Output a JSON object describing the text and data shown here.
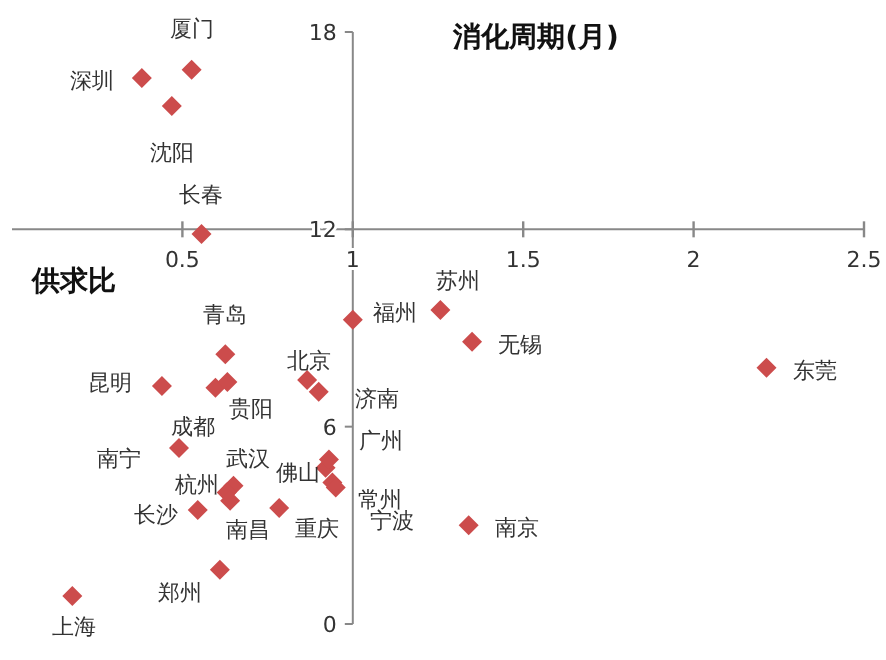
{
  "chart_data": {
    "type": "scatter",
    "xlabel": "供求比",
    "ylabel": "消化周期(月)",
    "xlim": [
      0,
      2.5
    ],
    "ylim": [
      0,
      18
    ],
    "xticks": [
      0.5,
      1,
      1.5,
      2,
      2.5
    ],
    "yticks": [
      0,
      6,
      12,
      18
    ],
    "marker": "diamond",
    "series": [
      {
        "color": "#cc4c4c",
        "x": [
          0.527,
          0.381,
          0.469,
          0.556,
          0.626,
          1.0,
          1.257,
          1.35,
          2.214,
          0.866,
          0.9,
          0.44,
          0.597,
          0.632,
          0.49,
          0.65,
          0.63,
          0.64,
          0.545,
          0.784,
          0.92,
          0.93,
          0.94,
          0.95,
          1.34,
          0.61,
          0.177
        ],
        "values": [
          16.85,
          16.6,
          15.75,
          11.86,
          8.2,
          9.25,
          9.55,
          8.58,
          7.79,
          7.42,
          7.06,
          7.24,
          7.18,
          7.36,
          5.35,
          4.2,
          4.0,
          3.75,
          3.47,
          3.53,
          4.75,
          5.0,
          4.3,
          4.15,
          3.0,
          1.65,
          0.85
        ]
      }
    ],
    "annotations": [
      {
        "text": "厦门",
        "x": 0.527,
        "y": 16.85
      },
      {
        "text": "深圳",
        "x": 0.381,
        "y": 16.6
      },
      {
        "text": "沈阳",
        "x": 0.469,
        "y": 15.75
      },
      {
        "text": "长春",
        "x": 0.556,
        "y": 11.86
      },
      {
        "text": "青岛",
        "x": 0.626,
        "y": 8.2
      },
      {
        "text": "福州",
        "x": 1.0,
        "y": 9.25
      },
      {
        "text": "苏州",
        "x": 1.257,
        "y": 9.55
      },
      {
        "text": "无锡",
        "x": 1.35,
        "y": 8.58
      },
      {
        "text": "东莞",
        "x": 2.214,
        "y": 7.79
      },
      {
        "text": "北京",
        "x": 0.866,
        "y": 7.42
      },
      {
        "text": "济南",
        "x": 0.9,
        "y": 7.06
      },
      {
        "text": "昆明",
        "x": 0.44,
        "y": 7.24
      },
      {
        "text": "成都",
        "x": 0.597,
        "y": 7.18
      },
      {
        "text": "贵阳",
        "x": 0.632,
        "y": 7.36
      },
      {
        "text": "南宁",
        "x": 0.49,
        "y": 5.35
      },
      {
        "text": "武汉",
        "x": 0.65,
        "y": 4.2
      },
      {
        "text": "杭州",
        "x": 0.63,
        "y": 4.0
      },
      {
        "text": "南昌",
        "x": 0.64,
        "y": 3.75
      },
      {
        "text": "长沙",
        "x": 0.545,
        "y": 3.47
      },
      {
        "text": "重庆",
        "x": 0.784,
        "y": 3.53
      },
      {
        "text": "佛山",
        "x": 0.92,
        "y": 4.75
      },
      {
        "text": "广州",
        "x": 0.93,
        "y": 5.0
      },
      {
        "text": "常州",
        "x": 0.94,
        "y": 4.3
      },
      {
        "text": "宁波",
        "x": 0.95,
        "y": 4.15
      },
      {
        "text": "南京",
        "x": 1.34,
        "y": 3.0
      },
      {
        "text": "郑州",
        "x": 0.61,
        "y": 1.65
      },
      {
        "text": "上海",
        "x": 0.177,
        "y": 0.85
      }
    ]
  }
}
